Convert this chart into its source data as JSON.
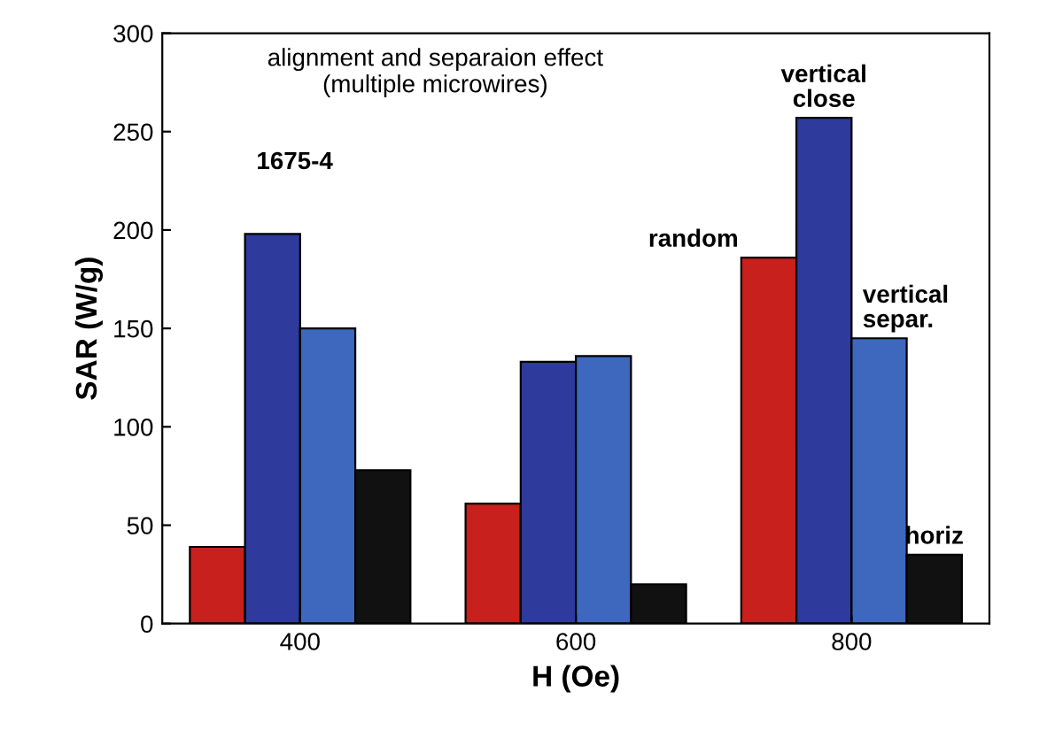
{
  "chart_data": {
    "type": "bar",
    "xlabel": "H (Oe)",
    "ylabel": "SAR (W/g)",
    "categories": [
      "400",
      "600",
      "800"
    ],
    "series": [
      {
        "name": "random",
        "color": "#c8201c",
        "values": [
          39,
          61,
          186
        ]
      },
      {
        "name": "vertical\nclose",
        "color": "#2e3a9c",
        "values": [
          198,
          133,
          257
        ]
      },
      {
        "name": "vertical\nsepar.",
        "color": "#3d68be",
        "values": [
          150,
          136,
          145
        ]
      },
      {
        "name": "horiz",
        "color": "#111111",
        "values": [
          78,
          20,
          35
        ]
      }
    ],
    "ylim": [
      0,
      300
    ],
    "yticks": [
      0,
      50,
      100,
      150,
      200,
      250,
      300
    ],
    "grid": false,
    "legend": false,
    "annotations": [
      "alignment and separaion effect\n(multiple microwires)",
      "1675-4"
    ]
  }
}
